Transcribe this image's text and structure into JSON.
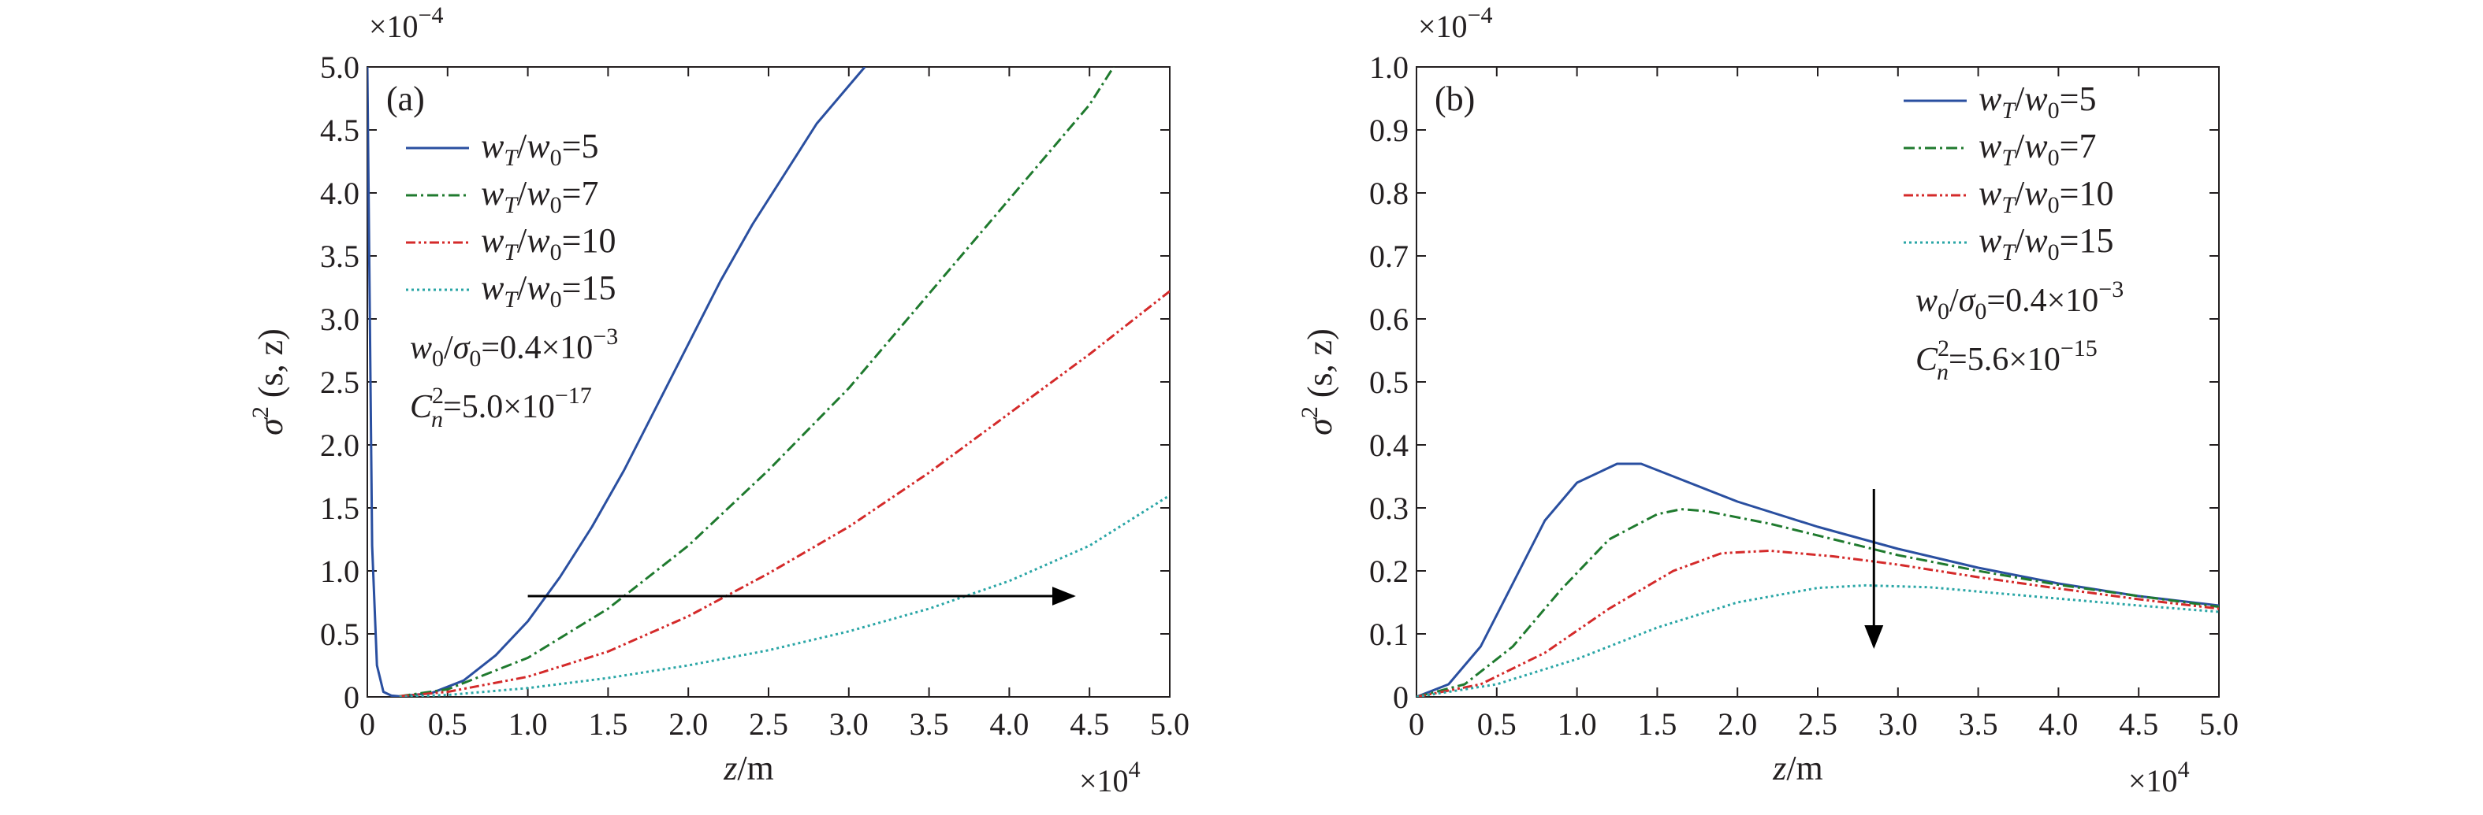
{
  "chart_data": [
    {
      "panel": "(a)",
      "type": "line",
      "ylabel_parts": {
        "sym": "σ",
        "sup": "2",
        "args": "(s, z)"
      },
      "xlabel_parts": {
        "sym": "z",
        "unit": "/m"
      },
      "x_multiplier": {
        "base": "×10",
        "exp": "4"
      },
      "y_multiplier": {
        "base": "×10",
        "exp": "−4"
      },
      "xlim": [
        0,
        5.0
      ],
      "ylim": [
        0,
        5.0
      ],
      "xticks": [
        "0",
        "0.5",
        "1.0",
        "1.5",
        "2.0",
        "2.5",
        "3.0",
        "3.5",
        "4.0",
        "4.5",
        "5.0"
      ],
      "yticks": [
        "0",
        "0.5",
        "1.0",
        "1.5",
        "2.0",
        "2.5",
        "3.0",
        "3.5",
        "4.0",
        "4.5",
        "5.0"
      ],
      "legend_location": "upper-left",
      "series": [
        {
          "name": "wT/w0=5",
          "ratio": "5",
          "color": "#2a4fa0",
          "dash": "solid",
          "points": [
            [
              0.0,
              5.0
            ],
            [
              0.03,
              1.2
            ],
            [
              0.06,
              0.25
            ],
            [
              0.1,
              0.04
            ],
            [
              0.15,
              0.01
            ],
            [
              0.2,
              0.005
            ],
            [
              0.4,
              0.03
            ],
            [
              0.6,
              0.13
            ],
            [
              0.8,
              0.33
            ],
            [
              1.0,
              0.6
            ],
            [
              1.2,
              0.95
            ],
            [
              1.4,
              1.35
            ],
            [
              1.6,
              1.8
            ],
            [
              1.8,
              2.3
            ],
            [
              2.0,
              2.8
            ],
            [
              2.2,
              3.3
            ],
            [
              2.4,
              3.75
            ],
            [
              2.6,
              4.15
            ],
            [
              2.8,
              4.55
            ],
            [
              3.0,
              4.85
            ],
            [
              3.1,
              5.0
            ]
          ]
        },
        {
          "name": "wT/w0=7",
          "ratio": "7",
          "color": "#1f7a2e",
          "dash": "dashdot",
          "points": [
            [
              0.2,
              0.005
            ],
            [
              0.5,
              0.06
            ],
            [
              1.0,
              0.31
            ],
            [
              1.5,
              0.7
            ],
            [
              2.0,
              1.2
            ],
            [
              2.5,
              1.8
            ],
            [
              3.0,
              2.45
            ],
            [
              3.5,
              3.2
            ],
            [
              4.0,
              3.95
            ],
            [
              4.5,
              4.7
            ],
            [
              4.65,
              5.0
            ]
          ]
        },
        {
          "name": "wT/w0=10",
          "ratio": "10",
          "color": "#d42a2a",
          "dash": "dashdotdot",
          "points": [
            [
              0.2,
              0.005
            ],
            [
              0.5,
              0.04
            ],
            [
              1.0,
              0.16
            ],
            [
              1.5,
              0.36
            ],
            [
              2.0,
              0.64
            ],
            [
              2.5,
              0.98
            ],
            [
              3.0,
              1.35
            ],
            [
              3.5,
              1.78
            ],
            [
              4.0,
              2.25
            ],
            [
              4.5,
              2.72
            ],
            [
              5.0,
              3.22
            ]
          ]
        },
        {
          "name": "wT/w0=15",
          "ratio": "15",
          "color": "#2aa6a6",
          "dash": "dotted",
          "points": [
            [
              0.2,
              0.002
            ],
            [
              0.5,
              0.015
            ],
            [
              1.0,
              0.07
            ],
            [
              1.5,
              0.15
            ],
            [
              2.0,
              0.25
            ],
            [
              2.5,
              0.37
            ],
            [
              3.0,
              0.52
            ],
            [
              3.5,
              0.7
            ],
            [
              4.0,
              0.92
            ],
            [
              4.5,
              1.2
            ],
            [
              5.0,
              1.6
            ]
          ]
        }
      ],
      "params": {
        "ratio": {
          "a": "w",
          "a_sub": "0",
          "b": "σ",
          "b_sub": "0",
          "value": "=0.4×10",
          "exp": "−3"
        },
        "cn": {
          "sym": "C",
          "sub": "n",
          "sup": "2",
          "value": "=5.0×10",
          "exp": "−17"
        }
      },
      "arrow": {
        "from": [
          1.0,
          0.8
        ],
        "to": [
          4.4,
          0.8
        ],
        "direction": "right"
      }
    },
    {
      "panel": "(b)",
      "type": "line",
      "ylabel_parts": {
        "sym": "σ",
        "sup": "2",
        "args": "(s, z)"
      },
      "xlabel_parts": {
        "sym": "z",
        "unit": "/m"
      },
      "x_multiplier": {
        "base": "×10",
        "exp": "4"
      },
      "y_multiplier": {
        "base": "×10",
        "exp": "−4"
      },
      "xlim": [
        0,
        5.0
      ],
      "ylim": [
        0,
        1.0
      ],
      "xticks": [
        "0",
        "0.5",
        "1.0",
        "1.5",
        "2.0",
        "2.5",
        "3.0",
        "3.5",
        "4.0",
        "4.5",
        "5.0"
      ],
      "yticks": [
        "0",
        "0.1",
        "0.2",
        "0.3",
        "0.4",
        "0.5",
        "0.6",
        "0.7",
        "0.8",
        "0.9",
        "1.0"
      ],
      "legend_location": "upper-right",
      "series": [
        {
          "name": "wT/w0=5",
          "ratio": "5",
          "color": "#2a4fa0",
          "dash": "solid",
          "points": [
            [
              0.0,
              0.0
            ],
            [
              0.2,
              0.02
            ],
            [
              0.4,
              0.08
            ],
            [
              0.6,
              0.18
            ],
            [
              0.8,
              0.28
            ],
            [
              1.0,
              0.34
            ],
            [
              1.25,
              0.37
            ],
            [
              1.4,
              0.37
            ],
            [
              1.6,
              0.35
            ],
            [
              2.0,
              0.31
            ],
            [
              2.5,
              0.27
            ],
            [
              3.0,
              0.235
            ],
            [
              3.5,
              0.205
            ],
            [
              4.0,
              0.18
            ],
            [
              4.5,
              0.16
            ],
            [
              5.0,
              0.145
            ]
          ]
        },
        {
          "name": "wT/w0=7",
          "ratio": "7",
          "color": "#1f7a2e",
          "dash": "dashdot",
          "points": [
            [
              0.0,
              0.0
            ],
            [
              0.3,
              0.02
            ],
            [
              0.6,
              0.08
            ],
            [
              0.9,
              0.17
            ],
            [
              1.2,
              0.25
            ],
            [
              1.5,
              0.29
            ],
            [
              1.65,
              0.298
            ],
            [
              1.8,
              0.295
            ],
            [
              2.2,
              0.275
            ],
            [
              2.6,
              0.25
            ],
            [
              3.0,
              0.225
            ],
            [
              3.5,
              0.2
            ],
            [
              4.0,
              0.178
            ],
            [
              4.5,
              0.16
            ],
            [
              5.0,
              0.143
            ]
          ]
        },
        {
          "name": "wT/w0=10",
          "ratio": "10",
          "color": "#d42a2a",
          "dash": "dashdotdot",
          "points": [
            [
              0.0,
              0.0
            ],
            [
              0.4,
              0.02
            ],
            [
              0.8,
              0.07
            ],
            [
              1.2,
              0.14
            ],
            [
              1.6,
              0.2
            ],
            [
              1.9,
              0.228
            ],
            [
              2.2,
              0.232
            ],
            [
              2.6,
              0.223
            ],
            [
              3.0,
              0.21
            ],
            [
              3.5,
              0.19
            ],
            [
              4.0,
              0.172
            ],
            [
              4.5,
              0.155
            ],
            [
              5.0,
              0.14
            ]
          ]
        },
        {
          "name": "wT/w0=15",
          "ratio": "15",
          "color": "#2aa6a6",
          "dash": "dotted",
          "points": [
            [
              0.0,
              0.0
            ],
            [
              0.5,
              0.02
            ],
            [
              1.0,
              0.06
            ],
            [
              1.5,
              0.11
            ],
            [
              2.0,
              0.15
            ],
            [
              2.5,
              0.173
            ],
            [
              2.8,
              0.177
            ],
            [
              3.2,
              0.174
            ],
            [
              3.6,
              0.165
            ],
            [
              4.0,
              0.156
            ],
            [
              4.5,
              0.145
            ],
            [
              5.0,
              0.135
            ]
          ]
        }
      ],
      "params": {
        "ratio": {
          "a": "w",
          "a_sub": "0",
          "b": "σ",
          "b_sub": "0",
          "value": "=0.4×10",
          "exp": "−3"
        },
        "cn": {
          "sym": "C",
          "sub": "n",
          "sup": "2",
          "value": "=5.6×10",
          "exp": "−15"
        }
      },
      "arrow": {
        "from": [
          2.85,
          0.33
        ],
        "to": [
          2.85,
          0.08
        ],
        "direction": "down"
      }
    }
  ]
}
